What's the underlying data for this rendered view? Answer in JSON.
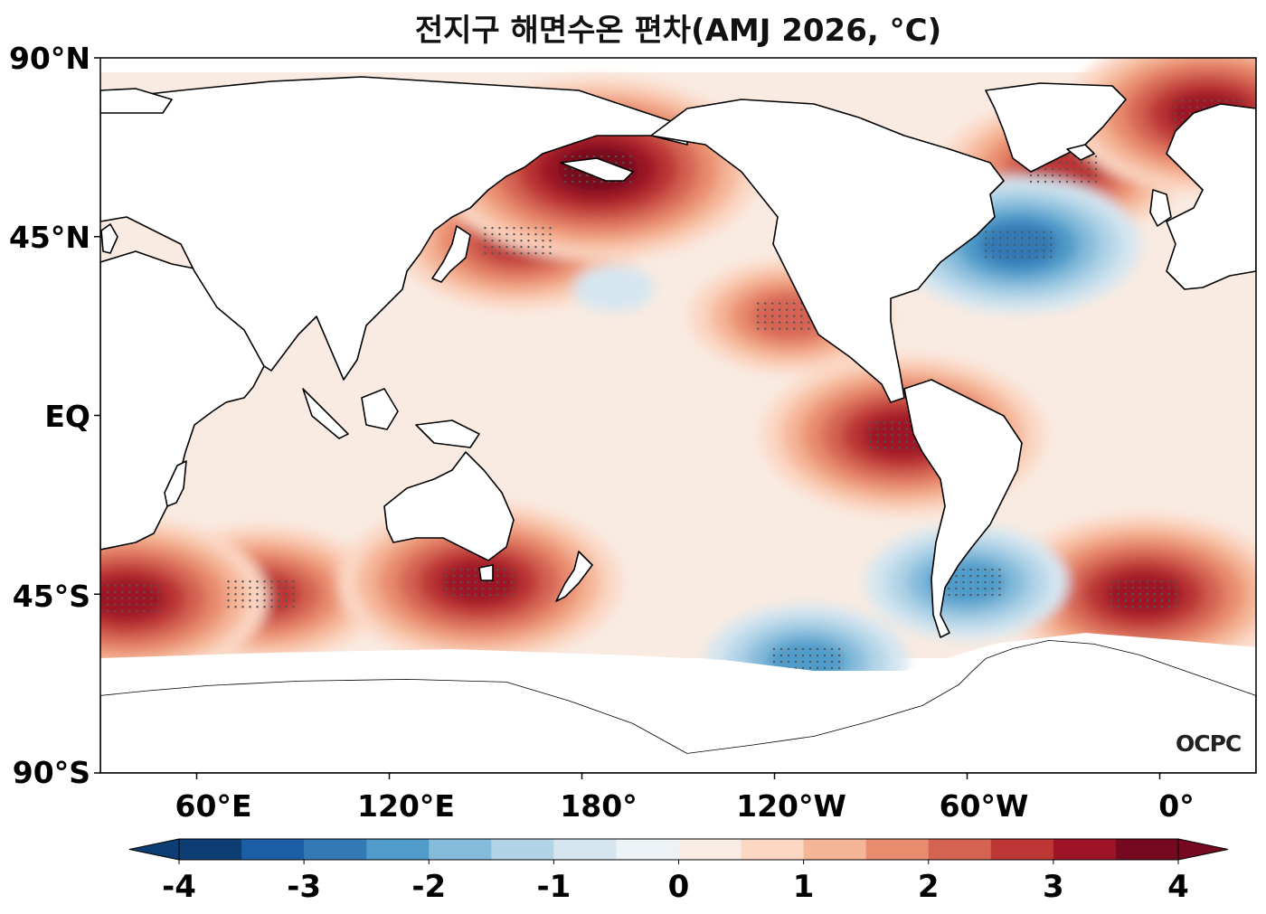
{
  "title": "전지구 해면수온 편차(AMJ 2026, °C)",
  "y_labels": [
    "90°N",
    "45°N",
    "EQ",
    "45°S",
    "90°S"
  ],
  "x_labels": [
    "60°E",
    "120°E",
    "180°",
    "120°W",
    "60°W",
    "0°"
  ],
  "logo": "OCPC",
  "colorbar": {
    "ticks": [
      "-4",
      "-3",
      "-2",
      "-1",
      "0",
      "1",
      "2",
      "3",
      "4"
    ],
    "colors": [
      "#0c3d73",
      "#1c5ea6",
      "#3279b6",
      "#509bc9",
      "#86bcdb",
      "#b2d4e7",
      "#d5e6f0",
      "#ecf2f5",
      "#f8ece4",
      "#fbd7c4",
      "#f5b597",
      "#e98c6e",
      "#d46352",
      "#bb3634",
      "#9e1426",
      "#75091f"
    ]
  },
  "chart_data": {
    "type": "heatmap",
    "title": "전지구 해면수온 편차(AMJ 2026, °C)",
    "variable": "sea surface temperature anomaly",
    "units": "°C",
    "period": "AMJ 2026",
    "lon_range": [
      30,
      390
    ],
    "lat_range": [
      -90,
      90
    ],
    "value_range": [
      -4,
      4
    ],
    "levels": [
      -4,
      -3.5,
      -3,
      -2.5,
      -2,
      -1.5,
      -1,
      -0.5,
      0,
      0.5,
      1,
      1.5,
      2,
      2.5,
      3,
      3.5,
      4
    ],
    "stippling": "statistically significant regions marked with dots",
    "notable_anomalies": [
      {
        "region": "Northwest Pacific (Kuroshio extension)",
        "lon": 160,
        "lat": 44,
        "value": 2.5
      },
      {
        "region": "Sea of Okhotsk / Kamchatka",
        "lon": 185,
        "lat": 62,
        "value": 3.5
      },
      {
        "region": "Northeast Pacific off Baja California",
        "lon": 245,
        "lat": 25,
        "value": 2.0
      },
      {
        "region": "Eastern equatorial Pacific off Peru",
        "lon": 280,
        "lat": -5,
        "value": 3.0
      },
      {
        "region": "North Atlantic subpolar",
        "lon": 330,
        "lat": 62,
        "value": 2.5
      },
      {
        "region": "Gulf Stream cold spot",
        "lon": 316,
        "lat": 43,
        "value": -2.5
      },
      {
        "region": "Barents/Nordic Seas",
        "lon": 375,
        "lat": 76,
        "value": 3.0
      },
      {
        "region": "South Atlantic",
        "lon": 355,
        "lat": -45,
        "value": 3.0
      },
      {
        "region": "Southern Indian Ocean",
        "lon": 80,
        "lat": -45,
        "value": 2.5
      },
      {
        "region": "Southwest Indian Ocean",
        "lon": 38,
        "lat": -46,
        "value": 3.0
      },
      {
        "region": "South of Australia/Tasmania",
        "lon": 148,
        "lat": -42,
        "value": 3.0
      },
      {
        "region": "Argentine shelf",
        "lon": 300,
        "lat": -42,
        "value": -2.0
      },
      {
        "region": "Southern Ocean Pacific sector",
        "lon": 250,
        "lat": -62,
        "value": -2.0
      },
      {
        "region": "Central North Pacific",
        "lon": 190,
        "lat": 32,
        "value": -0.5
      }
    ]
  }
}
